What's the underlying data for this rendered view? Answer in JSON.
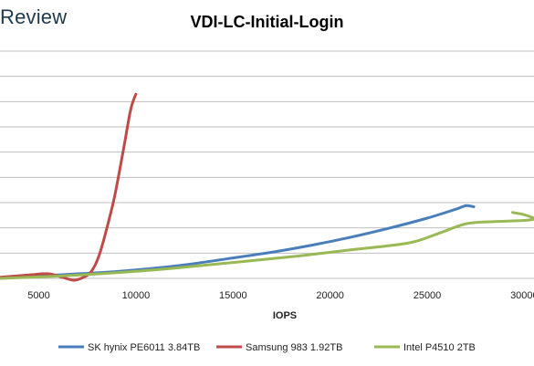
{
  "brand": "Review",
  "chart_data": {
    "type": "line",
    "title": "VDI-LC-Initial-Login",
    "xlabel": "IOPS",
    "ylabel": "",
    "xlim": [
      3000,
      30500
    ],
    "ylim": [
      0,
      10
    ],
    "x_ticks": [
      5000,
      10000,
      15000,
      20000,
      25000,
      30000
    ],
    "grid": true,
    "legend_position": "bottom",
    "series": [
      {
        "name": "SK hynix PE6011 3.84TB",
        "color": "#4a7ebb",
        "points": [
          [
            3000,
            0.0
          ],
          [
            5000,
            0.1
          ],
          [
            7000,
            0.2
          ],
          [
            9000,
            0.3
          ],
          [
            11000,
            0.45
          ],
          [
            13000,
            0.65
          ],
          [
            15000,
            0.9
          ],
          [
            17000,
            1.15
          ],
          [
            19000,
            1.45
          ],
          [
            21000,
            1.8
          ],
          [
            23000,
            2.2
          ],
          [
            25000,
            2.65
          ],
          [
            26500,
            3.05
          ],
          [
            27000,
            3.2
          ],
          [
            27400,
            3.15
          ]
        ]
      },
      {
        "name": "Samsung 983 1.92TB",
        "color": "#be4b48",
        "points": [
          [
            3000,
            0.05
          ],
          [
            4500,
            0.15
          ],
          [
            5500,
            0.2
          ],
          [
            6200,
            0.05
          ],
          [
            6800,
            -0.08
          ],
          [
            7300,
            0.05
          ],
          [
            7700,
            0.3
          ],
          [
            8100,
            1.0
          ],
          [
            8500,
            2.2
          ],
          [
            8900,
            3.6
          ],
          [
            9300,
            5.4
          ],
          [
            9700,
            7.3
          ],
          [
            9900,
            7.9
          ],
          [
            10000,
            8.1
          ]
        ]
      },
      {
        "name": "Intel P4510 2TB",
        "color": "#98b954",
        "points": [
          [
            3000,
            0.0
          ],
          [
            6000,
            0.1
          ],
          [
            9000,
            0.25
          ],
          [
            12000,
            0.45
          ],
          [
            15000,
            0.7
          ],
          [
            18000,
            0.95
          ],
          [
            21000,
            1.25
          ],
          [
            24000,
            1.55
          ],
          [
            25500,
            1.95
          ],
          [
            27000,
            2.4
          ],
          [
            28500,
            2.5
          ],
          [
            30000,
            2.55
          ],
          [
            30500,
            2.6
          ]
        ]
      },
      {
        "name": "",
        "color": "#98b954",
        "points": [
          [
            29400,
            2.9
          ],
          [
            30000,
            2.8
          ],
          [
            30500,
            2.65
          ]
        ]
      }
    ]
  }
}
